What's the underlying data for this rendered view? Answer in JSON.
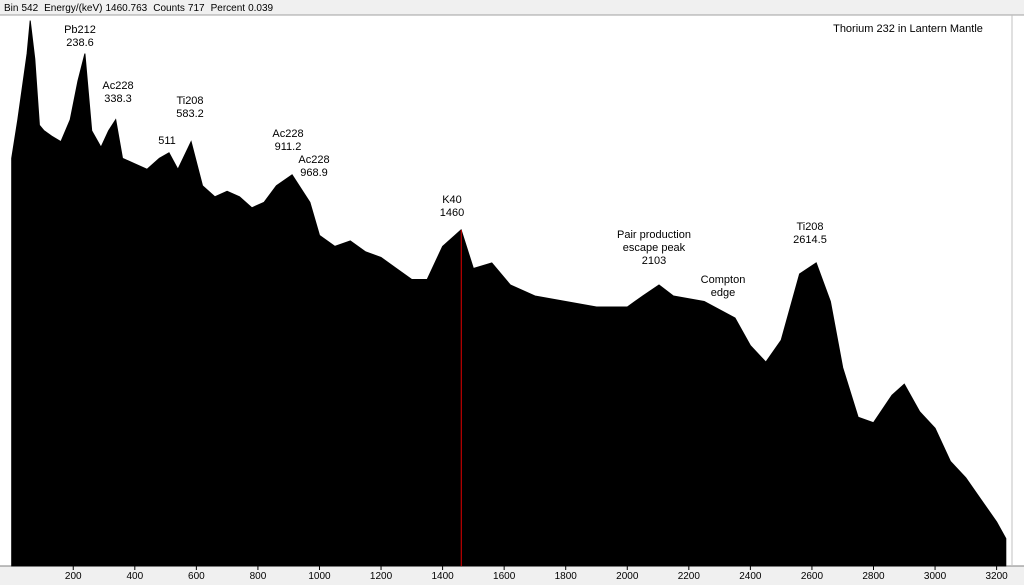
{
  "status_bar": [
    {
      "label": "Bin",
      "value": 542
    },
    {
      "label": "Energy/(keV)",
      "value": 1460.763
    },
    {
      "label": "Counts",
      "value": 717
    },
    {
      "label": "Percent",
      "value": 0.039
    }
  ],
  "chart_data": {
    "type": "area",
    "title": "Thorium 232 in Lantern Mantle",
    "color": "#000000",
    "cursor_color": "#c00000",
    "x": [
      0,
      20,
      50,
      60,
      75,
      90,
      105,
      130,
      160,
      190,
      215,
      238,
      260,
      290,
      315,
      338,
      360,
      400,
      440,
      480,
      511,
      540,
      583,
      620,
      660,
      700,
      740,
      780,
      820,
      860,
      911,
      969,
      1000,
      1050,
      1100,
      1150,
      1200,
      1250,
      1300,
      1350,
      1400,
      1460,
      1500,
      1560,
      1620,
      1700,
      1800,
      1900,
      2000,
      2050,
      2103,
      2150,
      2250,
      2350,
      2400,
      2450,
      2500,
      2560,
      2614,
      2660,
      2700,
      2750,
      2800,
      2860,
      2900,
      2950,
      3000,
      3050,
      3100,
      3150,
      3200,
      3230
    ],
    "values": [
      74,
      81,
      93,
      99,
      92,
      80,
      79,
      78,
      77,
      81,
      88,
      93,
      79,
      76,
      79,
      81,
      74,
      73,
      72,
      74,
      75,
      72,
      77,
      69,
      67,
      68,
      67,
      65,
      66,
      69,
      71,
      66,
      60,
      58,
      59,
      57,
      56,
      54,
      52,
      52,
      58,
      61,
      54,
      55,
      51,
      49,
      48,
      47,
      47,
      49,
      51,
      49,
      48,
      45,
      40,
      37,
      41,
      53,
      55,
      48,
      36,
      27,
      26,
      31,
      33,
      28,
      25,
      19,
      16,
      12,
      8,
      5
    ],
    "xlim": [
      -12,
      3250
    ],
    "ylim": [
      0,
      100
    ],
    "xticks": [
      200,
      400,
      600,
      800,
      1000,
      1200,
      1400,
      1600,
      1800,
      2000,
      2200,
      2400,
      2600,
      2800,
      3000,
      3200
    ],
    "annotations": [
      {
        "lines": [
          "Pb212",
          "238.6"
        ]
      },
      {
        "lines": [
          "Ac228",
          "338.3"
        ]
      },
      {
        "lines": [
          "Ti208",
          "583.2"
        ]
      },
      {
        "lines": [
          "511"
        ]
      },
      {
        "lines": [
          "Ac228",
          "911.2"
        ]
      },
      {
        "lines": [
          "Ac228",
          "968.9"
        ]
      },
      {
        "lines": [
          "K40",
          "1460"
        ]
      },
      {
        "lines": [
          "Pair production",
          "escape peak",
          "2103"
        ]
      },
      {
        "lines": [
          "Compton",
          "edge"
        ]
      },
      {
        "lines": [
          "Ti208",
          "2614.5"
        ]
      }
    ]
  }
}
